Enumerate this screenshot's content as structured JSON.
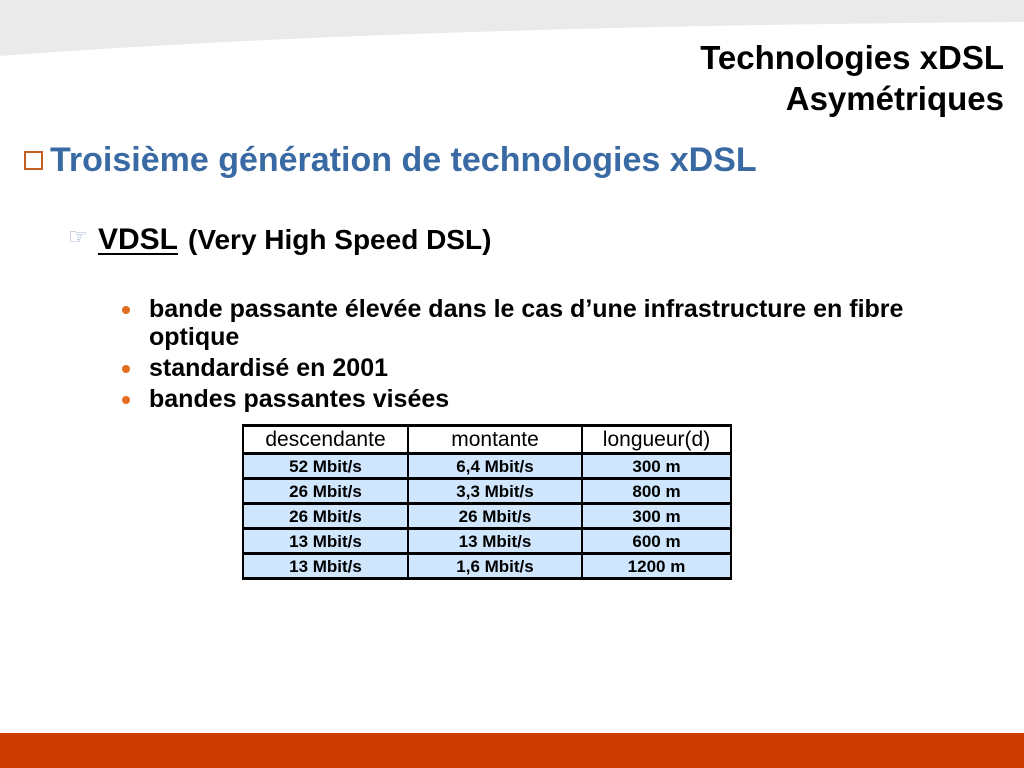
{
  "slide": {
    "title": [
      "Technologies xDSL",
      "Asymétriques"
    ],
    "heading": {
      "icon": "hollow-square-bullet-icon",
      "text": "Troisième génération de technologies xDSL"
    },
    "subheading": {
      "icon": "pointing-hand-icon",
      "term": "VDSL",
      "expansion": "(Very High Speed DSL)"
    },
    "bullet_icon": "round-dot-bullet-icon",
    "bullets": [
      "bande passante élevée dans le cas d’une infrastructure en fibre optique",
      "standardisé en 2001",
      "bandes passantes visées"
    ],
    "table": {
      "headers": [
        "descendante",
        "montante",
        "longueur(d)"
      ],
      "rows": [
        [
          "52 Mbit/s",
          "6,4 Mbit/s",
          "300 m"
        ],
        [
          "26 Mbit/s",
          "3,3 Mbit/s",
          "800 m"
        ],
        [
          "26 Mbit/s",
          "26 Mbit/s",
          "300 m"
        ],
        [
          "13 Mbit/s",
          "13 Mbit/s",
          "600 m"
        ],
        [
          "13 Mbit/s",
          "1,6 Mbit/s",
          "1200 m"
        ]
      ]
    }
  },
  "colors": {
    "heading": "#3a6aa3",
    "square_bullet": "#c55e22",
    "round_bullet": "#e36c21",
    "hand_icon": "#8fa3c9",
    "table_fill": "#cfe6fc",
    "top_band": "#eaeaea",
    "bottom_band": "#cd3b00"
  }
}
